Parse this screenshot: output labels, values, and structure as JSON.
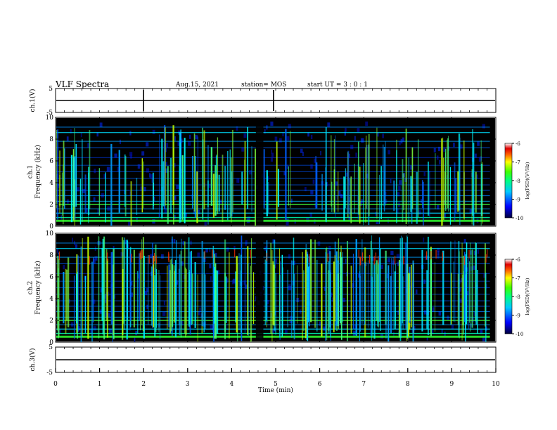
{
  "header": {
    "title": "VLF Spectra",
    "date": "Aug.15, 2021",
    "station": "station= MOS",
    "start": "start  UT =   3 : 0  : 1"
  },
  "chart_data": [
    {
      "type": "line",
      "panel": "ch1-voltage",
      "ylabel": "ch.1(V)",
      "ylim": [
        -5,
        5
      ],
      "yticks": [
        "5",
        "-5"
      ],
      "series": [
        {
          "values_description_level": 0
        }
      ]
    },
    {
      "type": "heatmap",
      "panel": "ch1-spectrogram",
      "ylabel": "ch.1\nFrequency (kHz)",
      "ylabel_lines": [
        "ch.1",
        "Frequency (kHz)"
      ],
      "ylim": [
        0,
        10
      ],
      "yticks": [
        "0",
        "2",
        "4",
        "6",
        "8",
        "10"
      ],
      "xlim": [
        0,
        10
      ],
      "colorbar": {
        "label": "log(PSD)(V²/Hz)",
        "ticks": [
          "-6",
          "-7",
          "-8",
          "-9",
          "-10"
        ],
        "range": [
          -10,
          -6
        ]
      },
      "dark_gap_minutes": [
        4.55,
        4.72
      ]
    },
    {
      "type": "heatmap",
      "panel": "ch2-spectrogram",
      "ylabel_lines": [
        "ch.2",
        "Frequency (kHz)"
      ],
      "ylim": [
        0,
        10
      ],
      "yticks": [
        "0",
        "2",
        "4",
        "6",
        "8",
        "10"
      ],
      "xlim": [
        0,
        10
      ],
      "colorbar": {
        "label": "log(PSD)(V²/Hz)",
        "ticks": [
          "-6",
          "-7",
          "-8",
          "-9",
          "-10"
        ],
        "range": [
          -10,
          -6
        ]
      },
      "dark_gap_minutes": [
        4.55,
        4.72
      ]
    },
    {
      "type": "line",
      "panel": "ch3-voltage",
      "ylabel": "ch.3(V)",
      "ylim": [
        -5,
        5
      ],
      "yticks": [
        "5",
        "-5"
      ],
      "xlabel": "Time (min)",
      "xlim": [
        0,
        10
      ],
      "xticks": [
        "0",
        "1",
        "2",
        "3",
        "4",
        "5",
        "6",
        "7",
        "8",
        "9",
        "10"
      ]
    }
  ]
}
